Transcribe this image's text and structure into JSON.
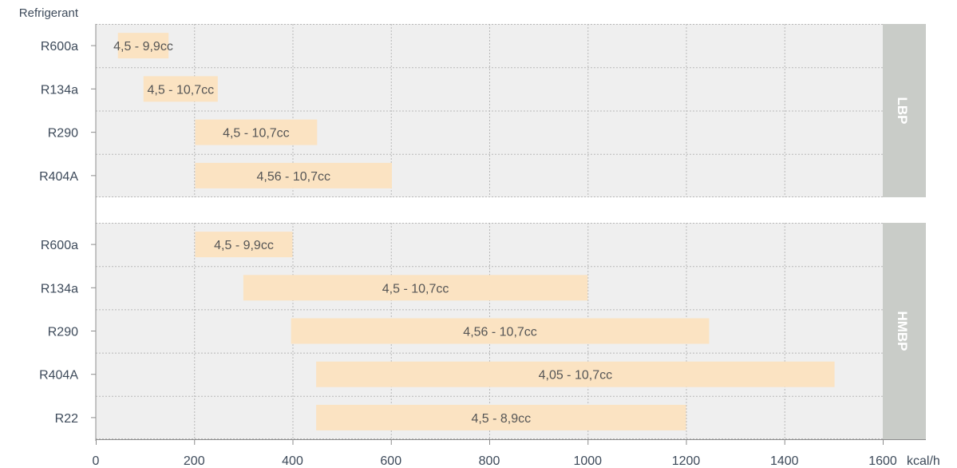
{
  "chart_data": {
    "type": "bar",
    "orientation": "horizontal-range",
    "ylabel": "Refrigerant",
    "xunit": "kcal/h",
    "xlim": [
      0,
      1600
    ],
    "xticks": [
      0,
      200,
      400,
      600,
      800,
      1000,
      1200,
      1400,
      1600
    ],
    "grid": true,
    "colors": {
      "bar": "#fbe3c2",
      "panel": "#efefef",
      "tab": "#c9ccc8",
      "grid": "#b8b8b8",
      "text": "#3d4a5a"
    },
    "groups": [
      {
        "name": "LBP",
        "rows": [
          {
            "refrigerant": "R600a",
            "start": 45,
            "end": 148,
            "label": "4,5 - 9,9cc"
          },
          {
            "refrigerant": "R134a",
            "start": 97,
            "end": 248,
            "label": "4,5 - 10,7cc"
          },
          {
            "refrigerant": "R290",
            "start": 202,
            "end": 450,
            "label": "4,5 - 10,7cc"
          },
          {
            "refrigerant": "R404A",
            "start": 202,
            "end": 602,
            "label": "4,56 - 10,7cc"
          }
        ]
      },
      {
        "name": "HMBP",
        "rows": [
          {
            "refrigerant": "R600a",
            "start": 202,
            "end": 400,
            "label": "4,5 - 9,9cc"
          },
          {
            "refrigerant": "R134a",
            "start": 300,
            "end": 1000,
            "label": "4,5 - 10,7cc"
          },
          {
            "refrigerant": "R290",
            "start": 397,
            "end": 1247,
            "label": "4,56 - 10,7cc"
          },
          {
            "refrigerant": "R404A",
            "start": 448,
            "end": 1502,
            "label": "4,05 - 10,7cc"
          },
          {
            "refrigerant": "R22",
            "start": 448,
            "end": 1200,
            "label": "4,5 - 8,9cc"
          }
        ]
      }
    ]
  }
}
